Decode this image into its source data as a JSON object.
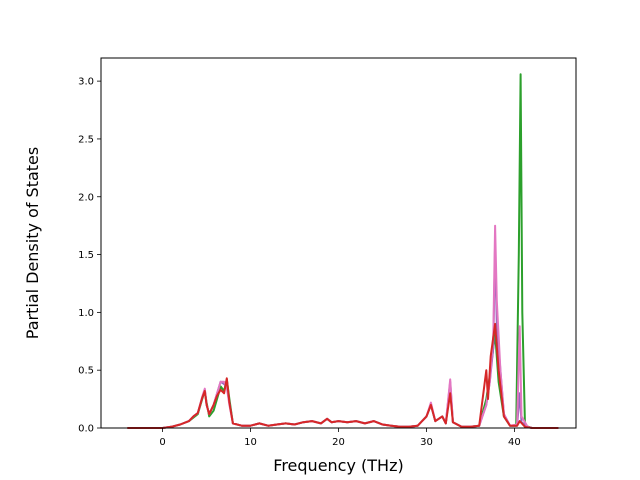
{
  "chart_data": {
    "type": "line",
    "title": "",
    "xlabel": "Frequency (THz)",
    "ylabel": "Partial Density of States",
    "xlim": [
      -7,
      47
    ],
    "ylim": [
      0,
      3.2
    ],
    "x_ticks": [
      0,
      10,
      20,
      30,
      40
    ],
    "y_ticks": [
      0.0,
      0.5,
      1.0,
      1.5,
      2.0,
      2.5,
      3.0
    ],
    "x_tick_labels": [
      "0",
      "10",
      "20",
      "30",
      "40"
    ],
    "y_tick_labels": [
      "0.0",
      "0.5",
      "1.0",
      "1.5",
      "2.0",
      "2.5",
      "3.0"
    ],
    "grid": false,
    "legend": "none",
    "series": [
      {
        "color": "#2ca02c",
        "points": [
          [
            -4,
            0
          ],
          [
            0,
            0
          ],
          [
            1,
            0.01
          ],
          [
            2,
            0.03
          ],
          [
            3,
            0.06
          ],
          [
            3.5,
            0.09
          ],
          [
            4,
            0.12
          ],
          [
            4.5,
            0.25
          ],
          [
            4.8,
            0.32
          ],
          [
            5.0,
            0.22
          ],
          [
            5.3,
            0.1
          ],
          [
            5.8,
            0.15
          ],
          [
            6.3,
            0.28
          ],
          [
            6.6,
            0.36
          ],
          [
            7,
            0.32
          ],
          [
            7.3,
            0.42
          ],
          [
            7.6,
            0.25
          ],
          [
            8,
            0.04
          ],
          [
            9,
            0.02
          ],
          [
            10,
            0.02
          ],
          [
            11,
            0.04
          ],
          [
            12,
            0.02
          ],
          [
            13,
            0.03
          ],
          [
            14,
            0.04
          ],
          [
            15,
            0.03
          ],
          [
            16,
            0.05
          ],
          [
            17,
            0.06
          ],
          [
            18,
            0.04
          ],
          [
            18.7,
            0.08
          ],
          [
            19.2,
            0.05
          ],
          [
            20,
            0.06
          ],
          [
            21,
            0.05
          ],
          [
            22,
            0.06
          ],
          [
            23,
            0.04
          ],
          [
            24,
            0.06
          ],
          [
            25,
            0.03
          ],
          [
            26,
            0.02
          ],
          [
            27,
            0.01
          ],
          [
            28,
            0.01
          ],
          [
            29,
            0.02
          ],
          [
            30,
            0.1
          ],
          [
            30.5,
            0.2
          ],
          [
            31,
            0.06
          ],
          [
            31.8,
            0.1
          ],
          [
            32.2,
            0.04
          ],
          [
            32.7,
            0.35
          ],
          [
            33,
            0.05
          ],
          [
            34,
            0.01
          ],
          [
            35,
            0.01
          ],
          [
            36,
            0.02
          ],
          [
            36.8,
            0.25
          ],
          [
            37.2,
            0.45
          ],
          [
            37.8,
            0.82
          ],
          [
            38.2,
            0.4
          ],
          [
            38.8,
            0.1
          ],
          [
            39.5,
            0.02
          ],
          [
            40.2,
            0.02
          ],
          [
            40.5,
            1.5
          ],
          [
            40.7,
            3.06
          ],
          [
            40.9,
            1.0
          ],
          [
            41.2,
            0.02
          ],
          [
            42,
            0
          ],
          [
            45,
            0
          ]
        ]
      },
      {
        "color": "#9467bd",
        "points": [
          [
            -4,
            0
          ],
          [
            0,
            0
          ],
          [
            1,
            0.01
          ],
          [
            2,
            0.03
          ],
          [
            3,
            0.06
          ],
          [
            3.5,
            0.1
          ],
          [
            4,
            0.13
          ],
          [
            4.5,
            0.26
          ],
          [
            4.8,
            0.33
          ],
          [
            5.0,
            0.2
          ],
          [
            5.3,
            0.12
          ],
          [
            5.8,
            0.2
          ],
          [
            6.2,
            0.3
          ],
          [
            6.6,
            0.4
          ],
          [
            7,
            0.38
          ],
          [
            7.3,
            0.36
          ],
          [
            7.6,
            0.22
          ],
          [
            8,
            0.04
          ],
          [
            9,
            0.02
          ],
          [
            10,
            0.02
          ],
          [
            11,
            0.04
          ],
          [
            12,
            0.02
          ],
          [
            13,
            0.03
          ],
          [
            14,
            0.04
          ],
          [
            15,
            0.03
          ],
          [
            16,
            0.05
          ],
          [
            17,
            0.06
          ],
          [
            18,
            0.04
          ],
          [
            18.7,
            0.08
          ],
          [
            19.2,
            0.05
          ],
          [
            20,
            0.06
          ],
          [
            21,
            0.05
          ],
          [
            22,
            0.06
          ],
          [
            23,
            0.04
          ],
          [
            24,
            0.06
          ],
          [
            25,
            0.03
          ],
          [
            26,
            0.02
          ],
          [
            27,
            0.01
          ],
          [
            28,
            0.01
          ],
          [
            29,
            0.02
          ],
          [
            30,
            0.1
          ],
          [
            30.5,
            0.2
          ],
          [
            31,
            0.06
          ],
          [
            31.8,
            0.1
          ],
          [
            32.2,
            0.04
          ],
          [
            32.7,
            0.4
          ],
          [
            33,
            0.05
          ],
          [
            34,
            0.01
          ],
          [
            35,
            0.01
          ],
          [
            36,
            0.02
          ],
          [
            36.8,
            0.2
          ],
          [
            37.2,
            0.4
          ],
          [
            37.6,
            0.7
          ],
          [
            37.8,
            1.6
          ],
          [
            38.0,
            0.9
          ],
          [
            38.4,
            0.5
          ],
          [
            38.8,
            0.12
          ],
          [
            39.5,
            0.02
          ],
          [
            40.3,
            0.02
          ],
          [
            40.6,
            0.3
          ],
          [
            40.8,
            0.05
          ],
          [
            41.5,
            0.01
          ],
          [
            42,
            0
          ],
          [
            45,
            0
          ]
        ]
      },
      {
        "color": "#e377c2",
        "points": [
          [
            -4,
            0
          ],
          [
            0,
            0
          ],
          [
            1,
            0.01
          ],
          [
            2,
            0.03
          ],
          [
            3,
            0.06
          ],
          [
            3.5,
            0.1
          ],
          [
            4,
            0.13
          ],
          [
            4.5,
            0.27
          ],
          [
            4.8,
            0.34
          ],
          [
            5.0,
            0.2
          ],
          [
            5.3,
            0.12
          ],
          [
            5.8,
            0.2
          ],
          [
            6.2,
            0.3
          ],
          [
            6.6,
            0.4
          ],
          [
            7,
            0.4
          ],
          [
            7.3,
            0.35
          ],
          [
            7.6,
            0.2
          ],
          [
            8,
            0.04
          ],
          [
            9,
            0.02
          ],
          [
            10,
            0.02
          ],
          [
            11,
            0.04
          ],
          [
            12,
            0.02
          ],
          [
            13,
            0.03
          ],
          [
            14,
            0.04
          ],
          [
            15,
            0.03
          ],
          [
            16,
            0.05
          ],
          [
            17,
            0.06
          ],
          [
            18,
            0.04
          ],
          [
            18.7,
            0.08
          ],
          [
            19.2,
            0.05
          ],
          [
            20,
            0.06
          ],
          [
            21,
            0.05
          ],
          [
            22,
            0.06
          ],
          [
            23,
            0.04
          ],
          [
            24,
            0.06
          ],
          [
            25,
            0.03
          ],
          [
            26,
            0.02
          ],
          [
            27,
            0.01
          ],
          [
            28,
            0.01
          ],
          [
            29,
            0.02
          ],
          [
            30,
            0.1
          ],
          [
            30.5,
            0.22
          ],
          [
            31,
            0.06
          ],
          [
            31.8,
            0.1
          ],
          [
            32.2,
            0.04
          ],
          [
            32.7,
            0.42
          ],
          [
            33,
            0.05
          ],
          [
            34,
            0.01
          ],
          [
            35,
            0.01
          ],
          [
            36,
            0.02
          ],
          [
            36.8,
            0.2
          ],
          [
            37.2,
            0.4
          ],
          [
            37.6,
            0.8
          ],
          [
            37.8,
            1.75
          ],
          [
            38.0,
            1.1
          ],
          [
            38.4,
            0.5
          ],
          [
            38.8,
            0.12
          ],
          [
            39.5,
            0.02
          ],
          [
            40.3,
            0.03
          ],
          [
            40.6,
            0.88
          ],
          [
            40.8,
            0.1
          ],
          [
            41.5,
            0.01
          ],
          [
            42,
            0
          ],
          [
            45,
            0
          ]
        ]
      },
      {
        "color": "#d62728",
        "points": [
          [
            -4,
            0
          ],
          [
            0,
            0
          ],
          [
            1,
            0.01
          ],
          [
            2,
            0.03
          ],
          [
            3,
            0.06
          ],
          [
            3.5,
            0.1
          ],
          [
            4,
            0.13
          ],
          [
            4.5,
            0.26
          ],
          [
            4.8,
            0.32
          ],
          [
            5.0,
            0.2
          ],
          [
            5.3,
            0.12
          ],
          [
            5.8,
            0.2
          ],
          [
            6.2,
            0.28
          ],
          [
            6.6,
            0.33
          ],
          [
            7,
            0.3
          ],
          [
            7.3,
            0.43
          ],
          [
            7.6,
            0.22
          ],
          [
            8,
            0.04
          ],
          [
            9,
            0.02
          ],
          [
            10,
            0.02
          ],
          [
            11,
            0.04
          ],
          [
            12,
            0.02
          ],
          [
            13,
            0.03
          ],
          [
            14,
            0.04
          ],
          [
            15,
            0.03
          ],
          [
            16,
            0.05
          ],
          [
            17,
            0.06
          ],
          [
            18,
            0.04
          ],
          [
            18.7,
            0.08
          ],
          [
            19.2,
            0.05
          ],
          [
            20,
            0.06
          ],
          [
            21,
            0.05
          ],
          [
            22,
            0.06
          ],
          [
            23,
            0.04
          ],
          [
            24,
            0.06
          ],
          [
            25,
            0.03
          ],
          [
            26,
            0.02
          ],
          [
            27,
            0.01
          ],
          [
            28,
            0.01
          ],
          [
            29,
            0.02
          ],
          [
            30,
            0.1
          ],
          [
            30.5,
            0.2
          ],
          [
            31,
            0.06
          ],
          [
            31.8,
            0.1
          ],
          [
            32.2,
            0.04
          ],
          [
            32.7,
            0.3
          ],
          [
            33,
            0.05
          ],
          [
            34,
            0.01
          ],
          [
            35,
            0.01
          ],
          [
            36,
            0.02
          ],
          [
            36.8,
            0.5
          ],
          [
            37.0,
            0.25
          ],
          [
            37.3,
            0.62
          ],
          [
            37.8,
            0.9
          ],
          [
            38.2,
            0.5
          ],
          [
            38.8,
            0.1
          ],
          [
            39.5,
            0.02
          ],
          [
            40.3,
            0.02
          ],
          [
            40.6,
            0.06
          ],
          [
            41.2,
            0.01
          ],
          [
            42,
            0
          ],
          [
            45,
            0
          ]
        ]
      }
    ]
  }
}
